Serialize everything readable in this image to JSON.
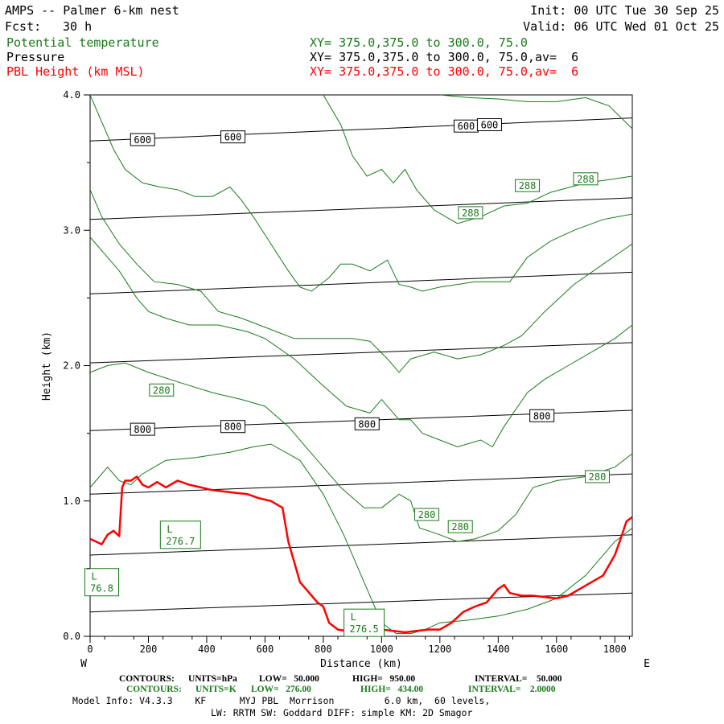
{
  "header": {
    "title": "AMPS -- Palmer 6-km nest",
    "fcst_label": "Fcst:",
    "fcst_value": "30 h",
    "init": "Init: 00 UTC Tue 30 Sep 25",
    "valid": "Valid: 06 UTC Wed 01 Oct 25",
    "field1": "Potential temperature",
    "field1_xy": "XY= 375.0,375.0 to 300.0, 75.0",
    "field2": "Pressure",
    "field2_xy": "XY= 375.0,375.0 to 300.0, 75.0,av=  6",
    "field3": "PBL Height (km MSL)",
    "field3_xy": "XY= 375.0,375.0 to 300.0, 75.0,av=  6"
  },
  "footer": {
    "line1_label": "CONTOURS:",
    "line1_units": "UNITS=hPa",
    "line1_low": "LOW=   50.000",
    "line1_high": "HIGH=   950.00",
    "line1_interval": "INTERVAL=    50.000",
    "line2_label": "CONTOURS:",
    "line2_units": "UNITS=K",
    "line2_low": "LOW=   276.00",
    "line2_high": "HIGH=   434.00",
    "line2_interval": "INTERVAL=    2.0000",
    "line3": "Model Info: V4.3.3    KF      MYJ PBL  Morrison         6.0 km,  60 levels,",
    "line4": "LW: RRTM SW: Goddard DIFF: simple KM: 2D Smagor"
  },
  "colors": {
    "theta": "#1a7a1a",
    "pbl": "#ff0000",
    "pressure": "#000000"
  },
  "chart_data": {
    "type": "line",
    "title": "AMPS -- Palmer 6-km nest",
    "xlabel": "Distance (km)",
    "ylabel": "Height (km)",
    "xlim": [
      0,
      1860
    ],
    "ylim": [
      0,
      4.0
    ],
    "x_ticks": [
      0,
      200,
      400,
      600,
      800,
      1000,
      1200,
      1400,
      1600,
      1800
    ],
    "y_ticks": [
      0.0,
      1.0,
      2.0,
      3.0,
      4.0
    ],
    "y_tick_labels": [
      "0.0",
      "1.0",
      "2.0",
      "3.0",
      "4.0"
    ],
    "x_end_labels": {
      "left": "W",
      "right": "E"
    },
    "pressure_isobars": [
      {
        "x": [
          0,
          1860
        ],
        "y": [
          0.18,
          0.32
        ]
      },
      {
        "x": [
          0,
          1860
        ],
        "y": [
          0.6,
          0.75
        ]
      },
      {
        "x": [
          0,
          1860
        ],
        "y": [
          1.05,
          1.2
        ]
      },
      {
        "x": [
          0,
          1860
        ],
        "y": [
          1.52,
          1.67
        ]
      },
      {
        "x": [
          0,
          1860
        ],
        "y": [
          2.02,
          2.17
        ]
      },
      {
        "x": [
          0,
          1860
        ],
        "y": [
          2.53,
          2.69
        ]
      },
      {
        "x": [
          0,
          1860
        ],
        "y": [
          3.08,
          3.24
        ]
      },
      {
        "x": [
          0,
          1860
        ],
        "y": [
          3.66,
          3.83
        ]
      }
    ],
    "pressure_labels": [
      {
        "text": "600",
        "x": 180,
        "y": 3.67
      },
      {
        "text": "600",
        "x": 490,
        "y": 3.69
      },
      {
        "text": "600",
        "x": 1290,
        "y": 3.77
      },
      {
        "text": "600",
        "x": 1370,
        "y": 3.78
      },
      {
        "text": "800",
        "x": 180,
        "y": 1.53
      },
      {
        "text": "800",
        "x": 490,
        "y": 1.55
      },
      {
        "text": "800",
        "x": 950,
        "y": 1.57
      },
      {
        "text": "800",
        "x": 1550,
        "y": 1.63
      }
    ],
    "theta_contours": [
      {
        "x": [
          0,
          60,
          100,
          140,
          180,
          260,
          360,
          480,
          560,
          620,
          720,
          800,
          870,
          950,
          1000,
          1050,
          1100,
          1150,
          1200,
          1300,
          1400,
          1500,
          1600,
          1700,
          1800,
          1860
        ],
        "y": [
          1.1,
          1.25,
          1.15,
          1.12,
          1.2,
          1.3,
          1.32,
          1.36,
          1.4,
          1.42,
          1.3,
          1.05,
          0.75,
          0.35,
          0.1,
          0.02,
          0.02,
          0.05,
          0.1,
          0.12,
          0.15,
          0.2,
          0.28,
          0.45,
          0.7,
          0.8
        ]
      },
      {
        "x": [
          0,
          60,
          120,
          200,
          300,
          420,
          520,
          600,
          680,
          760,
          860,
          940,
          1000,
          1060,
          1100,
          1130,
          1160,
          1200,
          1260,
          1320,
          1400,
          1460,
          1520,
          1600,
          1700,
          1800,
          1860
        ],
        "y": [
          1.95,
          2.0,
          2.02,
          1.95,
          1.88,
          1.8,
          1.75,
          1.7,
          1.55,
          1.35,
          1.1,
          0.95,
          0.95,
          1.05,
          1.0,
          0.8,
          0.78,
          0.75,
          0.7,
          0.72,
          0.78,
          0.9,
          1.1,
          1.15,
          1.18,
          1.25,
          1.35
        ]
      },
      {
        "x": [
          0,
          40,
          100,
          160,
          200,
          260,
          340,
          440,
          540,
          600,
          700,
          800,
          880,
          960,
          1000,
          1060,
          1100,
          1140,
          1200,
          1260,
          1340,
          1380,
          1420,
          1500,
          1560,
          1640,
          1720,
          1800,
          1860
        ],
        "y": [
          2.95,
          2.85,
          2.7,
          2.5,
          2.4,
          2.35,
          2.3,
          2.3,
          2.25,
          2.2,
          2.05,
          1.85,
          1.7,
          1.65,
          1.75,
          1.6,
          1.6,
          1.5,
          1.45,
          1.4,
          1.45,
          1.4,
          1.55,
          1.8,
          1.9,
          2.0,
          2.1,
          2.2,
          2.3
        ]
      },
      {
        "x": [
          0,
          40,
          100,
          160,
          220,
          300,
          380,
          440,
          520,
          580,
          640,
          700,
          760,
          840,
          900,
          960,
          1020,
          1060,
          1100,
          1180,
          1260,
          1340,
          1420,
          1480,
          1560,
          1660,
          1760,
          1860
        ],
        "y": [
          3.3,
          3.1,
          2.9,
          2.75,
          2.62,
          2.6,
          2.55,
          2.4,
          2.35,
          2.3,
          2.25,
          2.2,
          2.2,
          2.2,
          2.2,
          2.18,
          2.05,
          1.95,
          2.05,
          2.1,
          2.05,
          2.08,
          2.15,
          2.22,
          2.4,
          2.6,
          2.75,
          2.9
        ]
      },
      {
        "x": [
          0,
          40,
          80,
          120,
          180,
          240,
          300,
          360,
          420,
          480,
          520,
          560,
          620,
          680,
          720,
          760,
          820,
          860,
          900,
          960,
          1020,
          1060,
          1100,
          1140,
          1200,
          1260,
          1320,
          1380,
          1440,
          1500,
          1580,
          1660,
          1760,
          1860
        ],
        "y": [
          4.0,
          3.8,
          3.6,
          3.45,
          3.35,
          3.32,
          3.3,
          3.25,
          3.25,
          3.32,
          3.22,
          3.1,
          2.9,
          2.7,
          2.58,
          2.55,
          2.65,
          2.75,
          2.75,
          2.7,
          2.78,
          2.6,
          2.58,
          2.55,
          2.58,
          2.6,
          2.62,
          2.62,
          2.62,
          2.8,
          2.92,
          3.0,
          3.08,
          3.12
        ]
      },
      {
        "x": [
          800,
          860,
          900,
          950,
          1000,
          1040,
          1080,
          1120,
          1180,
          1260,
          1340,
          1420,
          1500,
          1580,
          1700,
          1800,
          1860
        ],
        "y": [
          4.0,
          3.78,
          3.55,
          3.4,
          3.45,
          3.35,
          3.45,
          3.3,
          3.15,
          3.05,
          3.1,
          3.18,
          3.2,
          3.28,
          3.35,
          3.38,
          3.4
        ]
      },
      {
        "x": [
          1200,
          1300,
          1400,
          1500,
          1600,
          1700,
          1780,
          1860
        ],
        "y": [
          4.0,
          3.98,
          3.97,
          3.95,
          3.95,
          3.98,
          3.92,
          3.75
        ]
      }
    ],
    "theta_labels": [
      {
        "text": "280",
        "x": 245,
        "y": 1.82
      },
      {
        "text": "280",
        "x": 1155,
        "y": 0.9
      },
      {
        "text": "280",
        "x": 1270,
        "y": 0.81
      },
      {
        "text": "280",
        "x": 1740,
        "y": 1.18
      },
      {
        "text": "288",
        "x": 1305,
        "y": 3.13
      },
      {
        "text": "288",
        "x": 1500,
        "y": 3.33
      },
      {
        "text": "288",
        "x": 1700,
        "y": 3.38
      }
    ],
    "lows": [
      {
        "letter": "L",
        "value": "276.7",
        "x": 310,
        "y": 0.75
      },
      {
        "letter": "L",
        "value": "76.8",
        "x": 40,
        "y": 0.4
      },
      {
        "letter": "L",
        "value": "276.5",
        "x": 940,
        "y": 0.1
      }
    ],
    "pbl_height": {
      "x": [
        0,
        20,
        40,
        60,
        80,
        100,
        110,
        120,
        140,
        160,
        180,
        200,
        230,
        260,
        300,
        340,
        380,
        420,
        460,
        500,
        540,
        580,
        620,
        660,
        680,
        700,
        720,
        740,
        760,
        780,
        800,
        820,
        850,
        880,
        900,
        940,
        980,
        1000,
        1040,
        1080,
        1120,
        1160,
        1200,
        1240,
        1280,
        1320,
        1360,
        1400,
        1420,
        1440,
        1480,
        1520,
        1560,
        1600,
        1640,
        1680,
        1720,
        1760,
        1800,
        1820,
        1840,
        1860
      ],
      "y": [
        0.72,
        0.7,
        0.68,
        0.75,
        0.78,
        0.74,
        1.1,
        1.15,
        1.15,
        1.18,
        1.12,
        1.1,
        1.14,
        1.1,
        1.15,
        1.12,
        1.1,
        1.08,
        1.07,
        1.06,
        1.05,
        1.02,
        1.0,
        0.95,
        0.7,
        0.55,
        0.4,
        0.35,
        0.3,
        0.25,
        0.22,
        0.1,
        0.05,
        0.04,
        0.05,
        0.06,
        0.04,
        0.05,
        0.04,
        0.03,
        0.04,
        0.05,
        0.05,
        0.1,
        0.18,
        0.22,
        0.25,
        0.35,
        0.38,
        0.32,
        0.3,
        0.3,
        0.29,
        0.28,
        0.3,
        0.35,
        0.4,
        0.45,
        0.6,
        0.72,
        0.85,
        0.88
      ]
    }
  }
}
